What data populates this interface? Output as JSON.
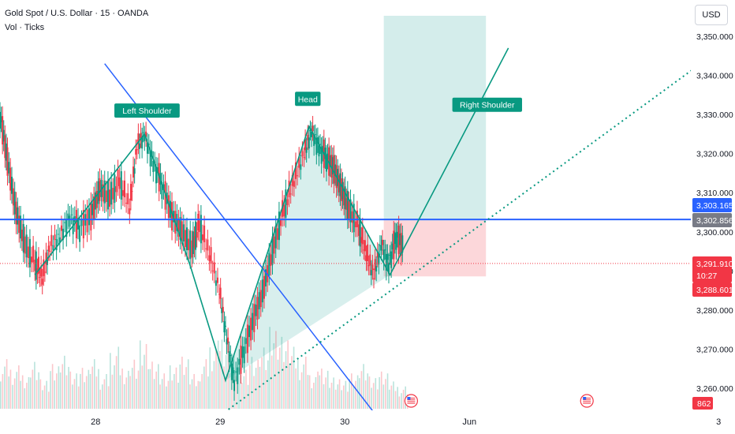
{
  "header": {
    "symbol": "Gold Spot / U.S. Dollar · 15 · OANDA",
    "indicator": "Vol · Ticks"
  },
  "currency_button": "USD",
  "chart_data": {
    "type": "line",
    "title": "Gold Spot / U.S. Dollar · 15 · OANDA",
    "xlabel": "",
    "ylabel": "",
    "x_ticks": [
      "28",
      "29",
      "30",
      "Jun",
      "3"
    ],
    "y_ticks": [
      3260,
      3270,
      3280,
      3290,
      3300,
      3310,
      3320,
      3330,
      3340,
      3350
    ],
    "y_tick_labels": [
      "3,260.000",
      "3,270.000",
      "3,280.000",
      "3,290.000",
      "3,300.000",
      "3,310.000",
      "3,320.000",
      "3,330.000",
      "3,340.000",
      "3,350.000"
    ],
    "ylim": [
      3252,
      3355
    ],
    "x_range_days": [
      27.22,
      33.1
    ],
    "grid": false,
    "price_series": {
      "x": [
        27.22,
        27.28,
        27.35,
        27.42,
        27.5,
        27.56,
        27.62,
        27.7,
        27.78,
        27.86,
        27.95,
        28.02,
        28.1,
        28.18,
        28.26,
        28.32,
        28.38,
        28.45,
        28.52,
        28.6,
        28.68,
        28.76,
        28.82,
        28.9,
        28.98,
        29.04,
        29.1,
        29.18,
        29.26,
        29.34,
        29.42,
        29.5,
        29.58,
        29.66,
        29.72,
        29.78,
        29.84,
        29.9,
        29.96,
        30.02,
        30.1,
        30.16,
        30.22,
        30.28,
        30.34,
        30.4,
        30.46
      ],
      "y": [
        3330,
        3318,
        3305,
        3297,
        3292,
        3288,
        3296,
        3299,
        3304,
        3301,
        3304,
        3311,
        3309,
        3313,
        3306,
        3322,
        3325,
        3318,
        3312,
        3304,
        3300,
        3296,
        3302,
        3294,
        3285,
        3273,
        3262,
        3270,
        3278,
        3286,
        3297,
        3306,
        3313,
        3320,
        3326,
        3322,
        3319,
        3316,
        3311,
        3306,
        3301,
        3294,
        3289,
        3297,
        3292,
        3299,
        3296
      ]
    },
    "volume_series": {
      "x": [
        27.22,
        27.3,
        27.38,
        27.46,
        27.54,
        27.62,
        27.7,
        27.78,
        27.86,
        27.94,
        28.02,
        28.1,
        28.18,
        28.26,
        28.34,
        28.42,
        28.5,
        28.58,
        28.66,
        28.74,
        28.82,
        28.9,
        28.98,
        29.06,
        29.14,
        29.22,
        29.3,
        29.38,
        29.46,
        29.54,
        29.62,
        29.7,
        29.78,
        29.86,
        29.94,
        30.02,
        30.1,
        30.18,
        30.26,
        30.34,
        30.42
      ],
      "v": [
        40,
        35,
        30,
        42,
        25,
        38,
        45,
        30,
        33,
        40,
        28,
        50,
        36,
        44,
        58,
        40,
        30,
        35,
        42,
        28,
        40,
        55,
        62,
        48,
        35,
        44,
        52,
        66,
        58,
        50,
        42,
        30,
        36,
        28,
        25,
        30,
        38,
        26,
        30,
        22,
        18
      ]
    },
    "horizontal_lines": [
      {
        "level": 3303.165,
        "label": "3,303.165",
        "color": "#2962ff"
      },
      {
        "level": 3291.91,
        "label": "3,291.910",
        "color": "#f23645"
      }
    ],
    "price_tags": [
      {
        "value": "3,303.165",
        "color": "#2962ff"
      },
      {
        "value": "3,302.856",
        "color": "#787b86"
      },
      {
        "value": "3,291.910",
        "color": "#f23645"
      },
      {
        "value": "10:27",
        "color": "#f23645"
      },
      {
        "value": "3,288.601",
        "color": "#f23645"
      }
    ],
    "volume_tag": {
      "value": "862",
      "color": "#f23645"
    },
    "pattern_labels": [
      "Left Shoulder",
      "Head",
      "Right Shoulder"
    ],
    "pattern_points": [
      {
        "x": 27.5,
        "y": 3289
      },
      {
        "x": 28.38,
        "y": 3325
      },
      {
        "x": 28.75,
        "y": 3291
      },
      {
        "x": 29.03,
        "y": 3262
      },
      {
        "x": 29.7,
        "y": 3327
      },
      {
        "x": 30.35,
        "y": 3289
      },
      {
        "x": 31.3,
        "y": 3347
      }
    ],
    "downtrend_line": [
      {
        "x": 28.06,
        "y": 3343
      },
      {
        "x": 30.24,
        "y": 3253
      }
    ],
    "neckline_dotted": [
      {
        "x": 28.9,
        "y": 3251
      },
      {
        "x": 32.8,
        "y": 3342
      }
    ],
    "target_zone": {
      "x0": 30.3,
      "x1": 31.12,
      "y0": 3302.9,
      "y1": 3355,
      "color": "#26a69a"
    },
    "stop_zone": {
      "x0": 30.3,
      "x1": 31.12,
      "y0": 3288.6,
      "y1": 3302.9,
      "color": "#f23645"
    },
    "colors": {
      "up": "#089981",
      "down": "#f23645",
      "pattern": "#089981",
      "trend": "#2962ff"
    }
  }
}
